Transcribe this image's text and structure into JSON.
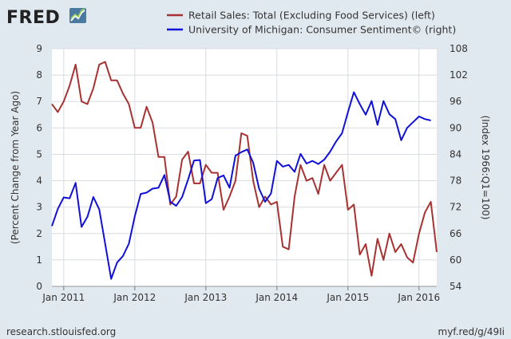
{
  "header": {
    "logo_text": "FRED",
    "logo_mark": "fred-chart-logo-icon"
  },
  "footer": {
    "source": "research.stlouisfed.org",
    "link": "myf.red/g/49Ii"
  },
  "colors": {
    "background": "#e1e9f0",
    "plot_background": "#ffffff",
    "gridline": "#d8dce0",
    "retail": "#a83232",
    "sentiment": "#1010d8"
  },
  "chart_data": {
    "type": "line",
    "title": "",
    "legend_placement": "top",
    "grid": true,
    "x_range": [
      "2010-11-01",
      "2016-04-01"
    ],
    "x_ticks": [
      {
        "date": "2011-01-01",
        "label": "Jan 2011"
      },
      {
        "date": "2012-01-01",
        "label": "Jan 2012"
      },
      {
        "date": "2013-01-01",
        "label": "Jan 2013"
      },
      {
        "date": "2014-01-01",
        "label": "Jan 2014"
      },
      {
        "date": "2015-01-01",
        "label": "Jan 2015"
      },
      {
        "date": "2016-01-01",
        "label": "Jan 2016"
      }
    ],
    "y_left": {
      "label": "(Percent Change from Year Ago)",
      "range": [
        0,
        9
      ],
      "ticks": [
        "0",
        "1",
        "2",
        "3",
        "4",
        "5",
        "6",
        "7",
        "8",
        "9"
      ]
    },
    "y_right": {
      "label": "(Index 1966:Q1=100)",
      "range": [
        54,
        108
      ],
      "ticks": [
        "54",
        "60",
        "66",
        "72",
        "78",
        "84",
        "90",
        "96",
        "102",
        "108"
      ]
    },
    "series": [
      {
        "name": "Retail Sales: Total (Excluding Food Services) (left)",
        "axis": "left",
        "color": "#a83232",
        "start": "2010-11",
        "values": [
          6.9,
          6.6,
          7.0,
          7.6,
          8.4,
          7.0,
          6.9,
          7.5,
          8.4,
          8.5,
          7.8,
          7.8,
          7.3,
          6.9,
          6.0,
          6.0,
          6.8,
          6.2,
          4.9,
          4.9,
          3.1,
          3.4,
          4.8,
          5.1,
          3.9,
          3.9,
          4.6,
          4.3,
          4.3,
          2.9,
          3.4,
          4.0,
          5.8,
          5.7,
          4.0,
          3.0,
          3.4,
          3.1,
          3.2,
          1.5,
          1.4,
          3.4,
          4.6,
          4.0,
          4.1,
          3.5,
          4.6,
          4.0,
          4.3,
          4.6,
          2.9,
          3.1,
          1.2,
          1.6,
          0.4,
          1.8,
          1.0,
          2.0,
          1.3,
          1.6,
          1.1,
          0.9,
          2.0,
          2.8,
          3.2,
          1.3
        ]
      },
      {
        "name": "University of Michigan: Consumer Sentiment© (right)",
        "axis": "right",
        "color": "#1010d8",
        "start": "2010-11",
        "values": [
          67.7,
          71.6,
          74.2,
          74.0,
          77.5,
          67.5,
          69.8,
          74.3,
          71.5,
          63.7,
          55.7,
          59.4,
          60.9,
          63.7,
          69.9,
          75.0,
          75.3,
          76.2,
          76.4,
          79.3,
          73.2,
          72.3,
          74.3,
          78.3,
          82.6,
          82.7,
          72.9,
          73.8,
          78.6,
          79.2,
          76.4,
          83.7,
          84.5,
          85.1,
          82.1,
          76.2,
          73.2,
          75.1,
          82.5,
          81.2,
          81.6,
          80.0,
          84.1,
          81.9,
          82.5,
          81.8,
          82.8,
          84.6,
          86.9,
          88.8,
          93.6,
          98.1,
          95.4,
          93.0,
          96.1,
          90.7,
          96.1,
          93.1,
          92.0,
          87.2,
          90.0,
          91.3,
          92.6,
          92.0,
          91.7
        ]
      }
    ]
  }
}
